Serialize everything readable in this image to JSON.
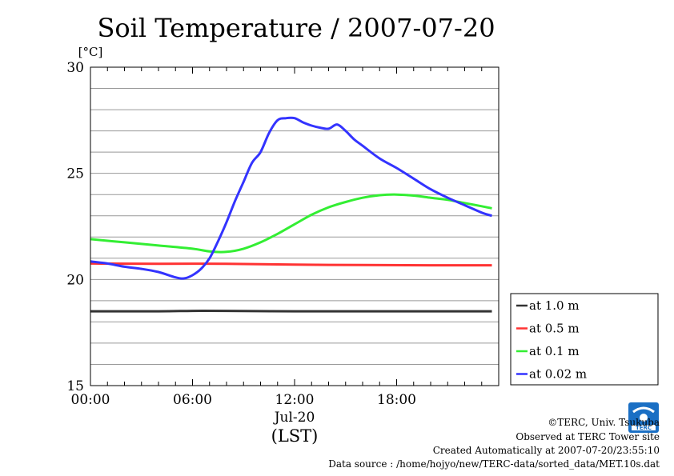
{
  "chart_data": {
    "type": "line",
    "title": "Soil Temperature / 2007-07-20",
    "ylabel": "[°C]",
    "xlabel": "(LST)",
    "xlim": [
      0,
      24
    ],
    "ylim": [
      15,
      30
    ],
    "y_ticks": [
      15,
      20,
      25,
      30
    ],
    "x_ticks": [
      {
        "value": 0,
        "label": "00:00"
      },
      {
        "value": 6,
        "label": "06:00"
      },
      {
        "value": 12,
        "label": "12:00"
      },
      {
        "value": 18,
        "label": "18:00"
      }
    ],
    "date_label": "Jul-20",
    "grid": true,
    "legend_position": "right-bottom",
    "series": [
      {
        "name": "at 1.0 m",
        "color": "#333333",
        "x": [
          0,
          4,
          6,
          8,
          12,
          16,
          20,
          23.6
        ],
        "y": [
          18.5,
          18.5,
          18.52,
          18.52,
          18.5,
          18.5,
          18.5,
          18.5
        ]
      },
      {
        "name": "at 0.5 m",
        "color": "#ff3333",
        "x": [
          0,
          4,
          8,
          12,
          16,
          20,
          23.6
        ],
        "y": [
          20.75,
          20.74,
          20.74,
          20.7,
          20.68,
          20.67,
          20.67
        ]
      },
      {
        "name": "at 0.1 m",
        "color": "#33ee33",
        "x": [
          0,
          2,
          4,
          6,
          7,
          8,
          9,
          10,
          11,
          12,
          13,
          14,
          15,
          16,
          17,
          18,
          19,
          20,
          21,
          22,
          23,
          23.6
        ],
        "y": [
          21.9,
          21.75,
          21.6,
          21.45,
          21.32,
          21.3,
          21.45,
          21.75,
          22.15,
          22.6,
          23.05,
          23.4,
          23.65,
          23.85,
          23.97,
          24.0,
          23.95,
          23.85,
          23.75,
          23.6,
          23.45,
          23.35
        ]
      },
      {
        "name": "at 0.02 m",
        "color": "#3333ff",
        "x": [
          0,
          1,
          2,
          3,
          4,
          5,
          5.5,
          6,
          6.5,
          7,
          7.5,
          8,
          8.5,
          9,
          9.5,
          10,
          10.5,
          11,
          11.5,
          12,
          12.5,
          13,
          13.5,
          14,
          14.5,
          15,
          15.5,
          16,
          17,
          18,
          19,
          20,
          21,
          22,
          23,
          23.6
        ],
        "y": [
          20.85,
          20.75,
          20.6,
          20.5,
          20.35,
          20.1,
          20.05,
          20.2,
          20.5,
          21.0,
          21.8,
          22.7,
          23.7,
          24.6,
          25.5,
          26.0,
          26.9,
          27.5,
          27.6,
          27.6,
          27.4,
          27.25,
          27.15,
          27.1,
          27.3,
          27.0,
          26.6,
          26.3,
          25.7,
          25.25,
          24.75,
          24.25,
          23.85,
          23.5,
          23.15,
          23.0
        ]
      }
    ]
  },
  "footer": {
    "copyright": "©TERC, Univ. Tsukuba",
    "site": "Observed at TERC Tower site",
    "created": "Created Automatically at 2007-07-20/23:55:10",
    "source": "Data source : /home/hojyo/new/TERC-data/sorted_data/MET.10s.dat"
  },
  "logo": {
    "text": "TERC",
    "color": "#1a6fc4"
  }
}
